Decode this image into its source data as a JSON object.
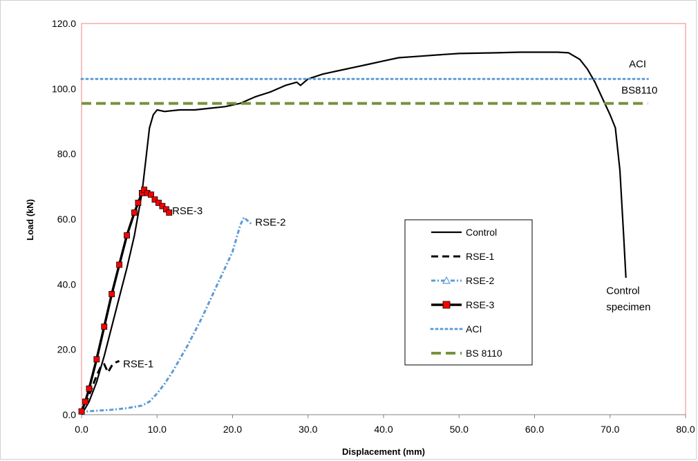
{
  "chart_data": {
    "type": "line",
    "title": "",
    "xlabel": "Displacement (mm)",
    "ylabel": "Load (kN)",
    "xlim": [
      0,
      80
    ],
    "ylim": [
      0,
      120
    ],
    "x_ticks": [
      "0.0",
      "10.0",
      "20.0",
      "30.0",
      "40.0",
      "50.0",
      "60.0",
      "70.0",
      "80.0"
    ],
    "y_ticks": [
      "0.0",
      "20.0",
      "40.0",
      "60.0",
      "80.0",
      "100.0",
      "120.0"
    ],
    "grid": false,
    "legend_position": "center-right",
    "plot_border_color": "#f08080",
    "series": [
      {
        "name": "Control",
        "color": "#000000",
        "style": "solid",
        "points": [
          [
            0,
            0
          ],
          [
            1,
            4
          ],
          [
            2,
            10
          ],
          [
            3,
            18
          ],
          [
            4,
            27
          ],
          [
            5,
            36
          ],
          [
            6,
            45
          ],
          [
            7,
            55
          ],
          [
            8,
            68
          ],
          [
            8.5,
            78
          ],
          [
            9,
            88
          ],
          [
            9.5,
            92
          ],
          [
            10,
            93.5
          ],
          [
            11,
            93
          ],
          [
            13,
            93.5
          ],
          [
            15,
            93.5
          ],
          [
            17,
            94
          ],
          [
            19,
            94.5
          ],
          [
            21,
            95.5
          ],
          [
            23,
            97.5
          ],
          [
            25,
            99
          ],
          [
            27,
            101
          ],
          [
            28.5,
            102
          ],
          [
            29,
            101
          ],
          [
            30,
            103
          ],
          [
            32,
            104.5
          ],
          [
            35,
            106
          ],
          [
            38,
            107.5
          ],
          [
            40,
            108.5
          ],
          [
            42,
            109.5
          ],
          [
            45,
            110
          ],
          [
            48,
            110.5
          ],
          [
            50,
            110.8
          ],
          [
            55,
            111
          ],
          [
            58,
            111.2
          ],
          [
            60,
            111.2
          ],
          [
            63,
            111.2
          ],
          [
            64.5,
            111
          ],
          [
            66,
            109
          ],
          [
            67,
            106
          ],
          [
            68,
            102
          ],
          [
            69,
            97
          ],
          [
            70,
            92
          ],
          [
            70.7,
            88
          ],
          [
            71.3,
            75
          ],
          [
            71.8,
            55
          ],
          [
            72.1,
            42
          ]
        ]
      },
      {
        "name": "RSE-1",
        "color": "#000000",
        "style": "dashed",
        "points": [
          [
            0,
            0
          ],
          [
            0.5,
            3
          ],
          [
            1,
            6
          ],
          [
            1.5,
            9
          ],
          [
            2,
            12
          ],
          [
            2.5,
            14.5
          ],
          [
            3,
            15.5
          ],
          [
            3.5,
            13
          ],
          [
            4,
            15
          ],
          [
            4.5,
            16
          ],
          [
            5,
            16.5
          ]
        ]
      },
      {
        "name": "RSE-2",
        "color": "#5b9bd5",
        "style": "dashdot",
        "points": [
          [
            0,
            0
          ],
          [
            0.5,
            1
          ],
          [
            2,
            1.2
          ],
          [
            4,
            1.5
          ],
          [
            6,
            2
          ],
          [
            8,
            2.8
          ],
          [
            9,
            4
          ],
          [
            10,
            6.5
          ],
          [
            11,
            9.5
          ],
          [
            12,
            13
          ],
          [
            13,
            17
          ],
          [
            14,
            21
          ],
          [
            15,
            25.5
          ],
          [
            16,
            30
          ],
          [
            17,
            35
          ],
          [
            18,
            40
          ],
          [
            19,
            45
          ],
          [
            20,
            50
          ],
          [
            20.5,
            54
          ],
          [
            21,
            58
          ],
          [
            21.5,
            60.5
          ],
          [
            22,
            59.5
          ],
          [
            22.5,
            58.5
          ]
        ]
      },
      {
        "name": "RSE-3",
        "color": "#000000",
        "marker_color": "#ff0000",
        "style": "solid-marker",
        "points": [
          [
            0,
            1
          ],
          [
            0.5,
            4
          ],
          [
            1,
            8
          ],
          [
            2,
            17
          ],
          [
            3,
            27
          ],
          [
            4,
            37
          ],
          [
            5,
            46
          ],
          [
            6,
            55
          ],
          [
            7,
            62
          ],
          [
            7.5,
            65
          ],
          [
            8,
            68
          ],
          [
            8.3,
            69
          ],
          [
            8.7,
            68
          ],
          [
            9.2,
            67.5
          ],
          [
            9.7,
            66
          ],
          [
            10.2,
            65
          ],
          [
            10.7,
            64
          ],
          [
            11.2,
            63
          ],
          [
            11.6,
            62
          ]
        ]
      },
      {
        "name": "ACI",
        "color": "#5b9bd5",
        "style": "dotted",
        "points": [
          [
            0,
            103
          ],
          [
            75,
            103
          ]
        ]
      },
      {
        "name": "BS 8110",
        "color": "#76923c",
        "style": "long-dash",
        "points": [
          [
            0,
            95.5
          ],
          [
            75,
            95.5
          ]
        ]
      }
    ],
    "annotations": [
      {
        "text": "RSE-3",
        "x": 12.0,
        "y": 61.5
      },
      {
        "text": "RSE-2",
        "x": 23.0,
        "y": 58.0
      },
      {
        "text": "RSE-1",
        "x": 5.5,
        "y": 14.5
      },
      {
        "text": "ACI",
        "x": 72.5,
        "y": 106.5
      },
      {
        "text": "BS8110",
        "x": 71.5,
        "y": 98.5
      },
      {
        "text": "Control",
        "x": 69.5,
        "y": 37.0
      },
      {
        "text": "specimen",
        "x": 69.5,
        "y": 32.0
      }
    ]
  }
}
